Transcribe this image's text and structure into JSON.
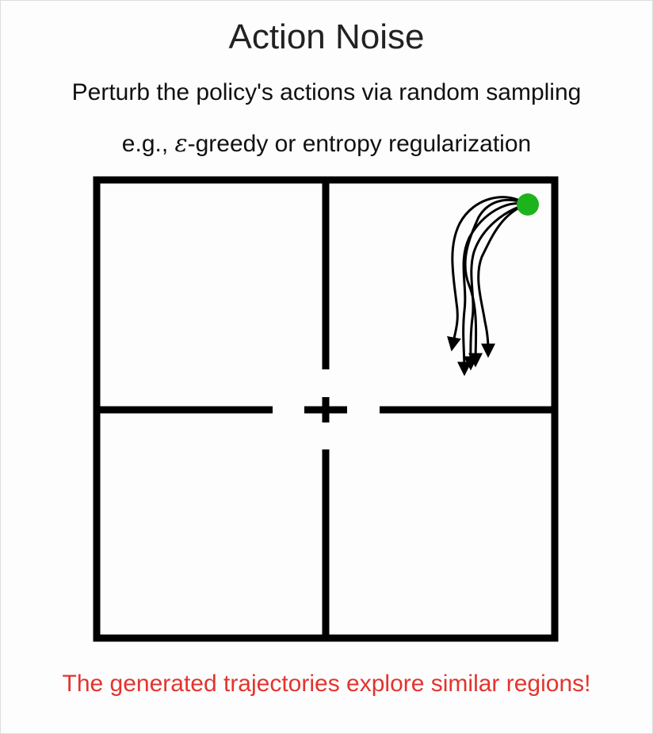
{
  "title": "Action Noise",
  "subtitle": "Perturb the policy's actions via random sampling",
  "example": {
    "prefix": "e.g., ",
    "symbol": "ε",
    "suffix": "-greedy or entropy regularization"
  },
  "caption": "The generated trajectories explore similar regions!",
  "colors": {
    "caption": "#e3342f",
    "walls": "#000000",
    "start_marker": "#1db31d",
    "trajectory": "#000000"
  },
  "diagram": {
    "environment": "four-room gridworld",
    "start_marker": "green-dot",
    "center_marker": "plus-icon",
    "trajectory_count": 5
  }
}
